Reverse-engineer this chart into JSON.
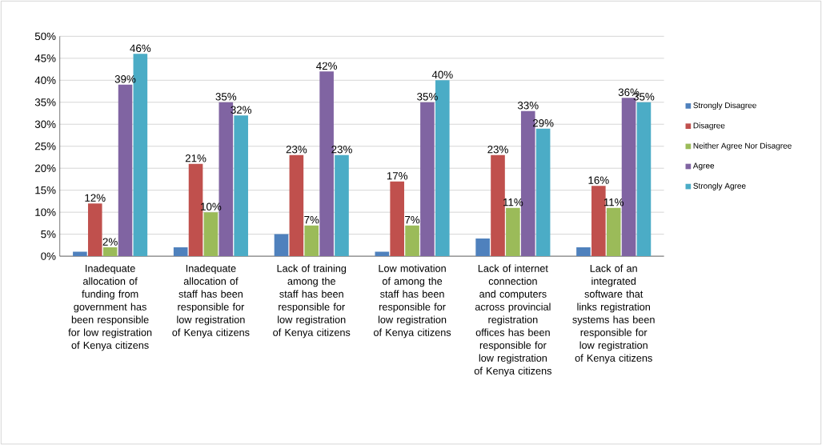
{
  "chart_data": {
    "type": "bar",
    "categories": [
      "Inadequate allocation of funding from government has been  responsible for low registration of Kenya citizens",
      "Inadequate allocation of staff has been responsible for low registration of Kenya citizens",
      "Lack of training among the staff has been responsible for low registration of Kenya citizens",
      "Low motivation of among the staff has been responsible for low registration of Kenya citizens",
      "Lack of internet connection and computers across provincial registration offices  has been responsible for low registration of Kenya citizens",
      "Lack of an integrated software that links registration systems has been responsible for low registration of Kenya citizens"
    ],
    "series": [
      {
        "name": "Strongly Disagree",
        "color": "#4f81bd",
        "values": [
          1,
          2,
          5,
          1,
          4,
          2
        ]
      },
      {
        "name": "Disagree",
        "color": "#c0504d",
        "values": [
          12,
          21,
          23,
          17,
          23,
          16
        ],
        "value_labels": [
          "12%",
          "21%",
          "23%",
          "17%",
          "23%",
          "16%"
        ]
      },
      {
        "name": "Neither Agree Nor Disagree",
        "color": "#9bbb59",
        "values": [
          2,
          10,
          7,
          7,
          11,
          11
        ],
        "value_labels": [
          "2%",
          "10%",
          "7%",
          "7%",
          "11%",
          "11%"
        ]
      },
      {
        "name": "Agree",
        "color": "#8064a2",
        "values": [
          39,
          35,
          42,
          35,
          33,
          36
        ],
        "value_labels": [
          "39%",
          "35%",
          "42%",
          "35%",
          "33%",
          "36%"
        ]
      },
      {
        "name": "Strongly Agree",
        "color": "#4bacc6",
        "values": [
          46,
          32,
          23,
          40,
          29,
          35
        ],
        "value_labels": [
          "46%",
          "32%",
          "23%",
          "40%",
          "29%",
          "35%"
        ]
      }
    ],
    "ylim": [
      0,
      50
    ],
    "yticks": [
      {
        "value": 0,
        "label": "0%"
      },
      {
        "value": 5,
        "label": "5%"
      },
      {
        "value": 10,
        "label": "10%"
      },
      {
        "value": 15,
        "label": "15%"
      },
      {
        "value": 20,
        "label": "20%"
      },
      {
        "value": 25,
        "label": "25%"
      },
      {
        "value": 30,
        "label": "30%"
      },
      {
        "value": 35,
        "label": "35%"
      },
      {
        "value": 40,
        "label": "40%"
      },
      {
        "value": 45,
        "label": "45%"
      },
      {
        "value": 50,
        "label": "50%"
      }
    ],
    "grid": "y",
    "legend": "right"
  }
}
